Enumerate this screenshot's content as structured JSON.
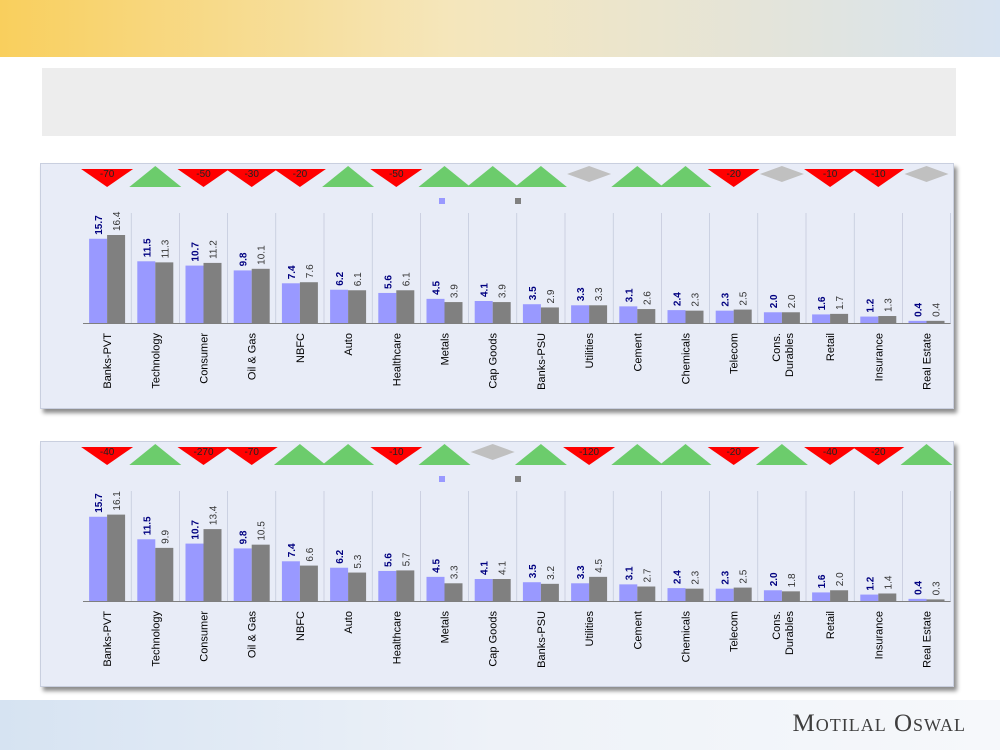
{
  "colors": {
    "series1": "#9999ff",
    "series2": "#808080",
    "value1": "#000080",
    "value2": "#333333",
    "up": "#6ccc6c",
    "down": "#ff0000",
    "neutral": "#c0c0c0"
  },
  "footer": {
    "logo_text": "Motilal Oswal"
  },
  "chart_data": [
    {
      "type": "bar",
      "title": "",
      "categories": [
        "Banks-PVT",
        "Technology",
        "Consumer",
        "Oil & Gas",
        "NBFC",
        "Auto",
        "Healthcare",
        "Metals",
        "Cap Goods",
        "Banks-PSU",
        "Utilities",
        "Cement",
        "Chemicals",
        "Telecom",
        "Cons.\nDurables",
        "Retail",
        "Insurance",
        "Real Estate"
      ],
      "series": [
        {
          "values": [
            15.7,
            11.5,
            10.7,
            9.8,
            7.4,
            6.2,
            5.6,
            4.5,
            4.1,
            3.5,
            3.3,
            3.1,
            2.4,
            2.3,
            2.0,
            1.6,
            1.2,
            0.4
          ]
        },
        {
          "values": [
            16.4,
            11.3,
            11.2,
            10.1,
            7.6,
            6.1,
            6.1,
            3.9,
            3.9,
            2.9,
            3.3,
            2.6,
            2.3,
            2.5,
            2.0,
            1.7,
            1.3,
            0.4
          ]
        }
      ],
      "labels1": [
        "15.7",
        "11.5",
        "10.7",
        "9.8",
        "7.4",
        "6.2",
        "5.6",
        "4.5",
        "4.1",
        "3.5",
        "3.3",
        "3.1",
        "2.4",
        "2.3",
        "2.0",
        "1.6",
        "1.2",
        "0.4"
      ],
      "labels2": [
        "16.4",
        "11.3",
        "11.2",
        "10.1",
        "7.6",
        "6.1",
        "6.1",
        "3.9",
        "3.9",
        "2.9",
        "3.3",
        "2.6",
        "2.3",
        "2.5",
        "2.0",
        "1.7",
        "1.3",
        "0.4"
      ],
      "change_markers": [
        "down",
        "up",
        "down",
        "down",
        "down",
        "up",
        "down",
        "up",
        "up",
        "up",
        "neutral",
        "up",
        "up",
        "down",
        "neutral",
        "down",
        "down",
        "neutral"
      ],
      "change_labels": [
        "-70",
        "",
        "-50",
        "-30",
        "-20",
        "",
        "-50",
        "",
        "",
        "",
        "",
        "",
        "",
        "-20",
        "",
        "-10",
        "-10",
        ""
      ],
      "ylim": [
        0,
        18
      ],
      "legend_position": "top"
    },
    {
      "type": "bar",
      "title": "",
      "categories": [
        "Banks-PVT",
        "Technology",
        "Consumer",
        "Oil & Gas",
        "NBFC",
        "Auto",
        "Healthcare",
        "Metals",
        "Cap Goods",
        "Banks-PSU",
        "Utilities",
        "Cement",
        "Chemicals",
        "Telecom",
        "Cons.\nDurables",
        "Retail",
        "Insurance",
        "Real Estate"
      ],
      "series": [
        {
          "values": [
            15.7,
            11.5,
            10.7,
            9.8,
            7.4,
            6.2,
            5.6,
            4.5,
            4.1,
            3.5,
            3.3,
            3.1,
            2.4,
            2.3,
            2.0,
            1.6,
            1.2,
            0.4
          ]
        },
        {
          "values": [
            16.1,
            9.9,
            13.4,
            10.5,
            6.6,
            5.3,
            5.7,
            3.3,
            4.1,
            3.2,
            4.5,
            2.7,
            2.3,
            2.5,
            1.8,
            2.0,
            1.4,
            0.3
          ]
        }
      ],
      "labels1": [
        "15.7",
        "11.5",
        "10.7",
        "9.8",
        "7.4",
        "6.2",
        "5.6",
        "4.5",
        "4.1",
        "3.5",
        "3.3",
        "3.1",
        "2.4",
        "2.3",
        "2.0",
        "1.6",
        "1.2",
        "0.4"
      ],
      "labels2": [
        "16.1",
        "9.9",
        "13.4",
        "10.5",
        "6.6",
        "5.3",
        "5.7",
        "3.3",
        "4.1",
        "3.2",
        "4.5",
        "2.7",
        "2.3",
        "2.5",
        "1.8",
        "2.0",
        "1.4",
        "0.3"
      ],
      "change_markers": [
        "down",
        "up",
        "down",
        "down",
        "up",
        "up",
        "down",
        "up",
        "neutral",
        "up",
        "down",
        "up",
        "up",
        "down",
        "up",
        "down",
        "down",
        "up"
      ],
      "change_labels": [
        "-40",
        "",
        "-270",
        "-70",
        "",
        "",
        "-10",
        "",
        "",
        "",
        "-120",
        "",
        "",
        "-20",
        "",
        "-40",
        "-20",
        ""
      ],
      "ylim": [
        0,
        18
      ],
      "legend_position": "top"
    }
  ]
}
